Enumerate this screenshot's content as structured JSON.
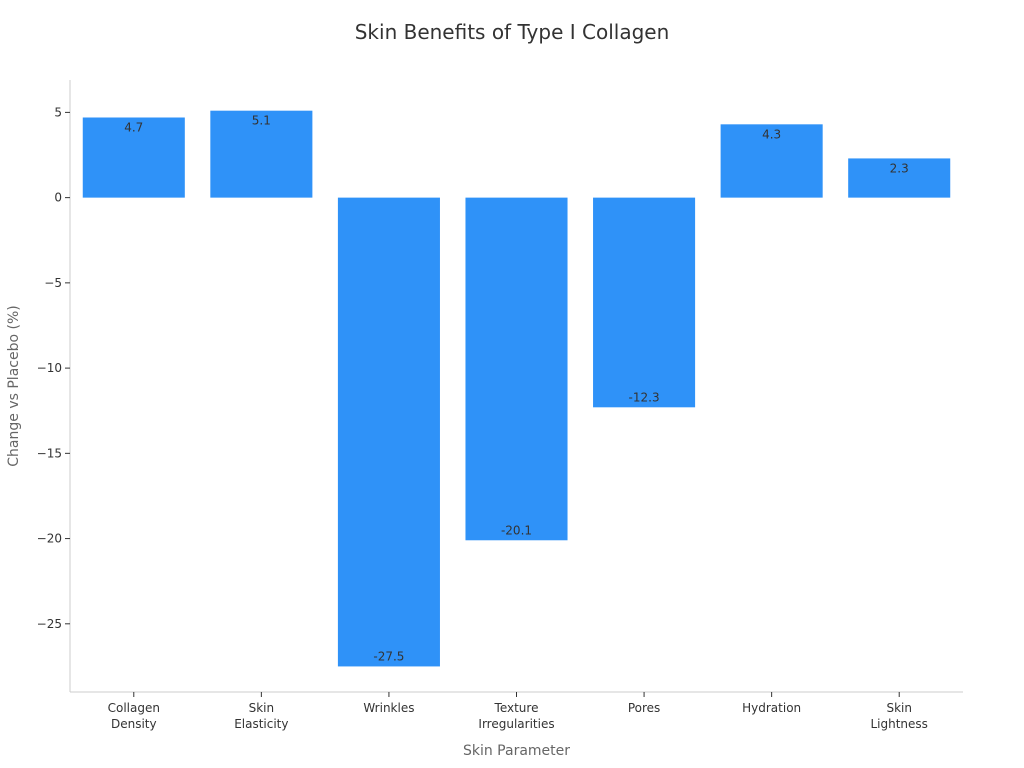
{
  "chart_data": {
    "type": "bar",
    "title": "Skin Benefits of Type I Collagen",
    "xlabel": "Skin Parameter",
    "ylabel": "Change vs Placebo (%)",
    "categories": [
      [
        "Collagen",
        "Density"
      ],
      [
        "Skin",
        "Elasticity"
      ],
      [
        "Wrinkles"
      ],
      [
        "Texture",
        "Irregularities"
      ],
      [
        "Pores"
      ],
      [
        "Hydration"
      ],
      [
        "Skin",
        "Lightness"
      ]
    ],
    "values": [
      4.7,
      5.1,
      -27.5,
      -20.1,
      -12.3,
      4.3,
      2.3
    ],
    "value_labels": [
      "4.7",
      "5.1",
      "-27.5",
      "-20.1",
      "-12.3",
      "4.3",
      "2.3"
    ],
    "yticks": [
      5,
      0,
      -5,
      -10,
      -15,
      -20,
      -25
    ],
    "ytick_labels": [
      "5",
      "0",
      "−5",
      "−10",
      "−15",
      "−20",
      "−25"
    ],
    "ylim": [
      -29.0,
      6.9
    ],
    "grid": false,
    "bar_color": "#2f92f8"
  }
}
